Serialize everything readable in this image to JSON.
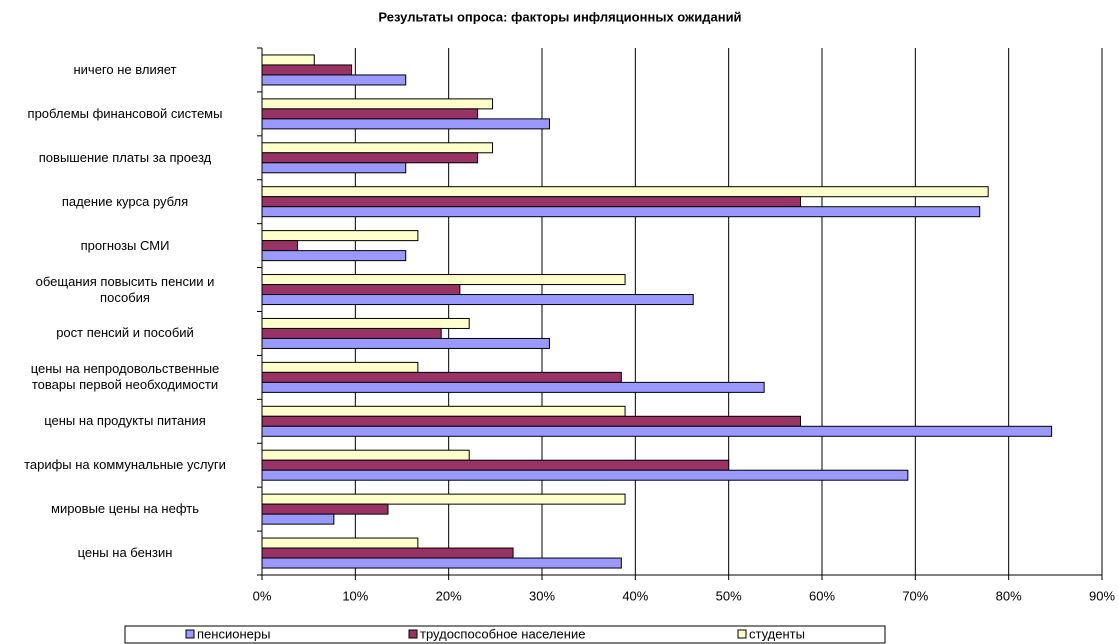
{
  "chart_data": {
    "type": "barh",
    "title": "Результаты опроса: факторы инфляционных ожиданий",
    "categories": [
      "ничего не влияет",
      "проблемы финансовой системы",
      "повышение платы за проезд",
      "падение курса рубля",
      "прогнозы СМИ",
      "обещания повысить пенсии и\nпособия",
      "рост пенсий и пособий",
      "цены на непродовольственные\nтовары первой необходимости",
      "цены на продукты питания",
      "тарифы на коммунальные услуги",
      "мировые цены на нефть",
      "цены на бензин"
    ],
    "series": [
      {
        "name": "пенсионеры",
        "color": "#9999ff",
        "values": [
          15.4,
          30.8,
          15.4,
          76.9,
          15.4,
          46.2,
          30.8,
          53.8,
          84.6,
          69.2,
          7.7,
          38.5
        ]
      },
      {
        "name": "трудоспособное население",
        "color": "#993366",
        "values": [
          9.6,
          23.1,
          23.1,
          57.7,
          3.8,
          21.2,
          19.2,
          38.5,
          57.7,
          50,
          13.5,
          26.9
        ]
      },
      {
        "name": "студенты",
        "color": "#ffffcc",
        "values": [
          5.6,
          24.7,
          24.7,
          77.8,
          16.7,
          38.9,
          22.2,
          16.7,
          38.9,
          22.2,
          38.9,
          16.7
        ]
      }
    ],
    "xlim": [
      0,
      90
    ],
    "xticks": [
      {
        "value": 0,
        "label": "0%"
      },
      {
        "value": 10,
        "label": "10%"
      },
      {
        "value": 20,
        "label": "20%"
      },
      {
        "value": 30,
        "label": "30%"
      },
      {
        "value": 40,
        "label": "40%"
      },
      {
        "value": 50,
        "label": "50%"
      },
      {
        "value": 60,
        "label": "60%"
      },
      {
        "value": 70,
        "label": "70%"
      },
      {
        "value": 80,
        "label": "80%"
      },
      {
        "value": 90,
        "label": "90%"
      }
    ],
    "grid": true,
    "legend": "bottom"
  }
}
